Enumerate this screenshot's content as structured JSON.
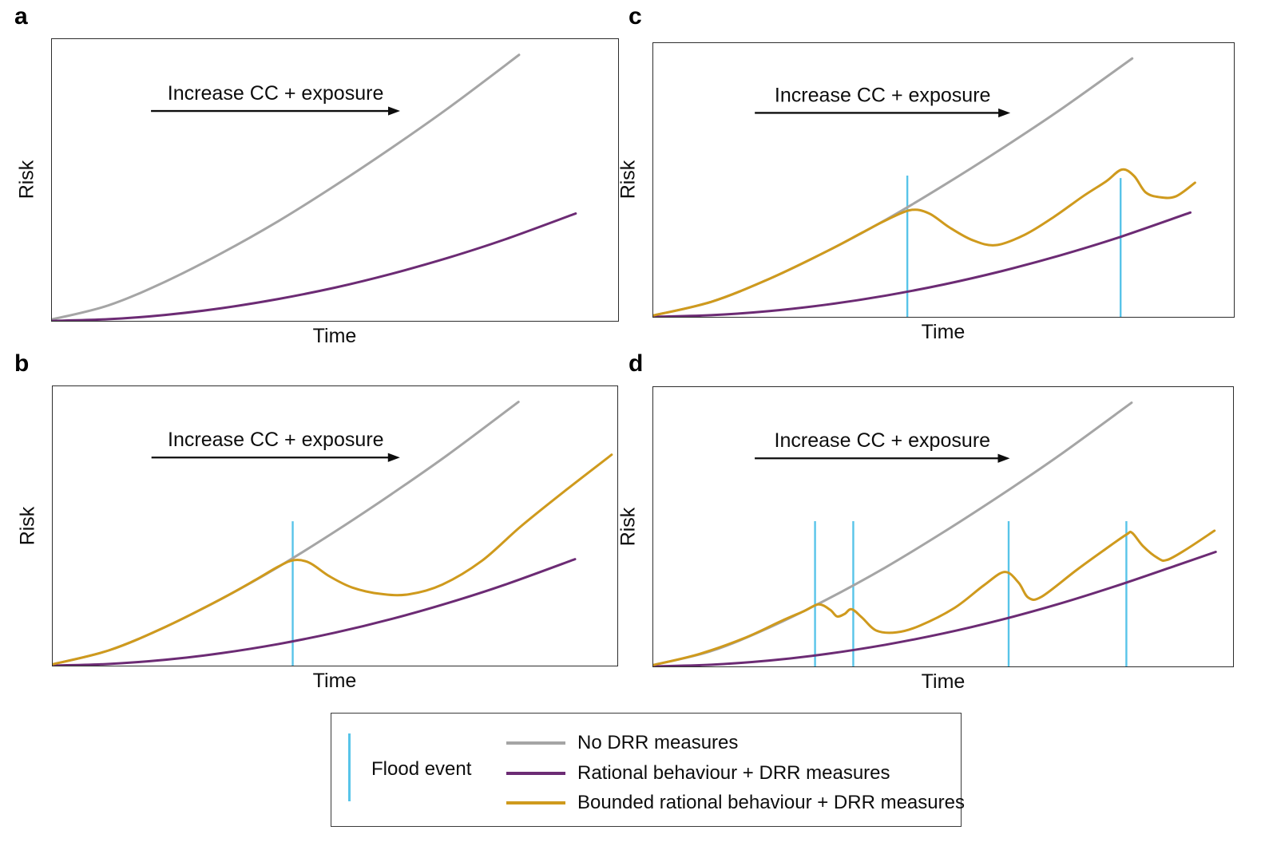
{
  "colors": {
    "no_drr": "#a5a5a5",
    "rational": "#6c2b74",
    "bounded_rational": "#cf9a1d",
    "flood_event": "#58c4e9",
    "annotation": "#0d0d0d"
  },
  "legend": {
    "flood_label": "Flood event",
    "entries": [
      {
        "label": "No DRR measures",
        "color": "#a5a5a5"
      },
      {
        "label": "Rational behaviour + DRR measures",
        "color": "#6c2b74"
      },
      {
        "label": "Bounded rational behaviour + DRR measures",
        "color": "#cf9a1d"
      }
    ]
  },
  "chart_data": [
    {
      "type": "line",
      "panel_label": "a",
      "annotation": "Increase CC + exposure",
      "xlabel": "Time",
      "ylabel": "Risk",
      "axes": {
        "x_range_normalized": [
          0,
          1
        ],
        "y_range_normalized": [
          0,
          1
        ],
        "grid": false,
        "ticks": "none (conceptual sketch)"
      },
      "flood_events": [],
      "series": [
        {
          "id": "no-drr",
          "name": "No DRR measures",
          "color": "#a5a5a5",
          "points": [
            [
              0,
              0.005
            ],
            [
              0.1,
              0.055
            ],
            [
              0.2,
              0.139
            ],
            [
              0.3,
              0.2405
            ],
            [
              0.4,
              0.354
            ],
            [
              0.5,
              0.48
            ],
            [
              0.6,
              0.614
            ],
            [
              0.7,
              0.755
            ],
            [
              0.825,
              0.944
            ]
          ]
        },
        {
          "id": "rational",
          "name": "Rational behaviour + DRR measures",
          "color": "#6c2b74",
          "points": [
            [
              0,
              0.0
            ],
            [
              0.1,
              0.006
            ],
            [
              0.2,
              0.021
            ],
            [
              0.3,
              0.045
            ],
            [
              0.4,
              0.0775
            ],
            [
              0.5,
              0.118
            ],
            [
              0.6,
              0.167
            ],
            [
              0.7,
              0.224
            ],
            [
              0.8,
              0.289
            ],
            [
              0.925,
              0.381
            ]
          ]
        }
      ]
    },
    {
      "type": "line",
      "panel_label": "b",
      "annotation": "Increase CC + exposure",
      "xlabel": "Time",
      "ylabel": "Risk",
      "axes": {
        "x_range_normalized": [
          0,
          1
        ],
        "y_range_normalized": [
          0,
          1
        ],
        "grid": false,
        "ticks": "none (conceptual sketch)"
      },
      "flood_events": [
        {
          "x": 0.425,
          "y_top": 0.517
        }
      ],
      "series": [
        {
          "id": "no-drr",
          "name": "No DRR measures",
          "color": "#a5a5a5",
          "points": [
            [
              0,
              0.005
            ],
            [
              0.1,
              0.055
            ],
            [
              0.2,
              0.139
            ],
            [
              0.3,
              0.2405
            ],
            [
              0.4,
              0.354
            ],
            [
              0.5,
              0.48
            ],
            [
              0.6,
              0.614
            ],
            [
              0.7,
              0.755
            ],
            [
              0.825,
              0.944
            ]
          ]
        },
        {
          "id": "rational",
          "name": "Rational behaviour + DRR measures",
          "color": "#6c2b74",
          "points": [
            [
              0,
              0.0
            ],
            [
              0.1,
              0.006
            ],
            [
              0.2,
              0.021
            ],
            [
              0.3,
              0.045
            ],
            [
              0.4,
              0.0775
            ],
            [
              0.5,
              0.118
            ],
            [
              0.6,
              0.167
            ],
            [
              0.7,
              0.224
            ],
            [
              0.8,
              0.289
            ],
            [
              0.925,
              0.381
            ]
          ]
        },
        {
          "id": "bounded-rational",
          "name": "Bounded rational behaviour + DRR measures",
          "color": "#cf9a1d",
          "points": [
            [
              0,
              0.005
            ],
            [
              0.1,
              0.055
            ],
            [
              0.2,
              0.139
            ],
            [
              0.3,
              0.2405
            ],
            [
              0.36,
              0.308
            ],
            [
              0.4,
              0.355
            ],
            [
              0.428,
              0.378
            ],
            [
              0.455,
              0.368
            ],
            [
              0.49,
              0.32
            ],
            [
              0.53,
              0.28
            ],
            [
              0.58,
              0.257
            ],
            [
              0.63,
              0.255
            ],
            [
              0.69,
              0.29
            ],
            [
              0.76,
              0.375
            ],
            [
              0.83,
              0.5
            ],
            [
              0.91,
              0.63
            ],
            [
              0.99,
              0.755
            ]
          ]
        }
      ]
    },
    {
      "type": "line",
      "panel_label": "c",
      "annotation": "Increase CC + exposure",
      "xlabel": "Time",
      "ylabel": "Risk",
      "axes": {
        "x_range_normalized": [
          0,
          1
        ],
        "y_range_normalized": [
          0,
          1
        ],
        "grid": false,
        "ticks": "none (conceptual sketch)"
      },
      "flood_events": [
        {
          "x": 0.4376,
          "y_top": 0.516
        },
        {
          "x": 0.805,
          "y_top": 0.507
        }
      ],
      "series": [
        {
          "id": "no-drr",
          "name": "No DRR measures",
          "color": "#a5a5a5",
          "points": [
            [
              0,
              0.005
            ],
            [
              0.1,
              0.055
            ],
            [
              0.2,
              0.139
            ],
            [
              0.3,
              0.2405
            ],
            [
              0.4,
              0.354
            ],
            [
              0.5,
              0.48
            ],
            [
              0.6,
              0.614
            ],
            [
              0.7,
              0.755
            ],
            [
              0.825,
              0.944
            ]
          ]
        },
        {
          "id": "rational",
          "name": "Rational behaviour + DRR measures",
          "color": "#6c2b74",
          "points": [
            [
              0,
              0.0
            ],
            [
              0.1,
              0.006
            ],
            [
              0.2,
              0.021
            ],
            [
              0.3,
              0.045
            ],
            [
              0.4,
              0.0775
            ],
            [
              0.5,
              0.118
            ],
            [
              0.6,
              0.167
            ],
            [
              0.7,
              0.224
            ],
            [
              0.8,
              0.289
            ],
            [
              0.925,
              0.381
            ]
          ]
        },
        {
          "id": "bounded-rational",
          "name": "Bounded rational behaviour + DRR measures",
          "color": "#cf9a1d",
          "points": [
            [
              0,
              0.005
            ],
            [
              0.1,
              0.055
            ],
            [
              0.2,
              0.139
            ],
            [
              0.3,
              0.2405
            ],
            [
              0.36,
              0.308
            ],
            [
              0.4,
              0.352
            ],
            [
              0.443,
              0.39
            ],
            [
              0.475,
              0.378
            ],
            [
              0.51,
              0.327
            ],
            [
              0.55,
              0.28
            ],
            [
              0.59,
              0.262
            ],
            [
              0.64,
              0.3
            ],
            [
              0.69,
              0.365
            ],
            [
              0.74,
              0.44
            ],
            [
              0.78,
              0.495
            ],
            [
              0.807,
              0.538
            ],
            [
              0.828,
              0.515
            ],
            [
              0.848,
              0.455
            ],
            [
              0.872,
              0.437
            ],
            [
              0.9,
              0.44
            ],
            [
              0.933,
              0.49
            ]
          ]
        }
      ]
    },
    {
      "type": "line",
      "panel_label": "d",
      "annotation": "Increase CC + exposure",
      "xlabel": "Time",
      "ylabel": "Risk",
      "axes": {
        "x_range_normalized": [
          0,
          1
        ],
        "y_range_normalized": [
          0,
          1
        ],
        "grid": false,
        "ticks": "none (conceptual sketch)"
      },
      "flood_events": [
        {
          "x": 0.279,
          "y_top": 0.52
        },
        {
          "x": 0.345,
          "y_top": 0.52
        },
        {
          "x": 0.613,
          "y_top": 0.52
        },
        {
          "x": 0.816,
          "y_top": 0.52
        }
      ],
      "series": [
        {
          "id": "no-drr",
          "name": "No DRR measures",
          "color": "#a5a5a5",
          "points": [
            [
              0,
              0.005
            ],
            [
              0.1,
              0.055
            ],
            [
              0.2,
              0.139
            ],
            [
              0.3,
              0.2405
            ],
            [
              0.4,
              0.354
            ],
            [
              0.5,
              0.48
            ],
            [
              0.6,
              0.614
            ],
            [
              0.7,
              0.755
            ],
            [
              0.825,
              0.944
            ]
          ]
        },
        {
          "id": "rational",
          "name": "Rational behaviour + DRR measures",
          "color": "#6c2b74",
          "points": [
            [
              0,
              0.0
            ],
            [
              0.1,
              0.006
            ],
            [
              0.2,
              0.021
            ],
            [
              0.3,
              0.045
            ],
            [
              0.4,
              0.0775
            ],
            [
              0.5,
              0.118
            ],
            [
              0.6,
              0.167
            ],
            [
              0.7,
              0.224
            ],
            [
              0.8,
              0.289
            ],
            [
              0.9,
              0.36
            ],
            [
              0.97,
              0.41
            ]
          ]
        },
        {
          "id": "bounded-rational",
          "name": "Bounded rational behaviour + DRR measures",
          "color": "#cf9a1d",
          "points": [
            [
              0,
              0.005
            ],
            [
              0.08,
              0.045
            ],
            [
              0.16,
              0.104
            ],
            [
              0.22,
              0.162
            ],
            [
              0.26,
              0.198
            ],
            [
              0.285,
              0.222
            ],
            [
              0.305,
              0.203
            ],
            [
              0.317,
              0.179
            ],
            [
              0.33,
              0.188
            ],
            [
              0.342,
              0.205
            ],
            [
              0.36,
              0.175
            ],
            [
              0.385,
              0.128
            ],
            [
              0.42,
              0.122
            ],
            [
              0.46,
              0.146
            ],
            [
              0.52,
              0.21
            ],
            [
              0.57,
              0.29
            ],
            [
              0.606,
              0.338
            ],
            [
              0.63,
              0.3
            ],
            [
              0.647,
              0.246
            ],
            [
              0.67,
              0.25
            ],
            [
              0.73,
              0.345
            ],
            [
              0.78,
              0.42
            ],
            [
              0.816,
              0.472
            ],
            [
              0.826,
              0.478
            ],
            [
              0.845,
              0.43
            ],
            [
              0.87,
              0.388
            ],
            [
              0.886,
              0.381
            ],
            [
              0.92,
              0.42
            ],
            [
              0.968,
              0.486
            ]
          ]
        }
      ]
    }
  ]
}
